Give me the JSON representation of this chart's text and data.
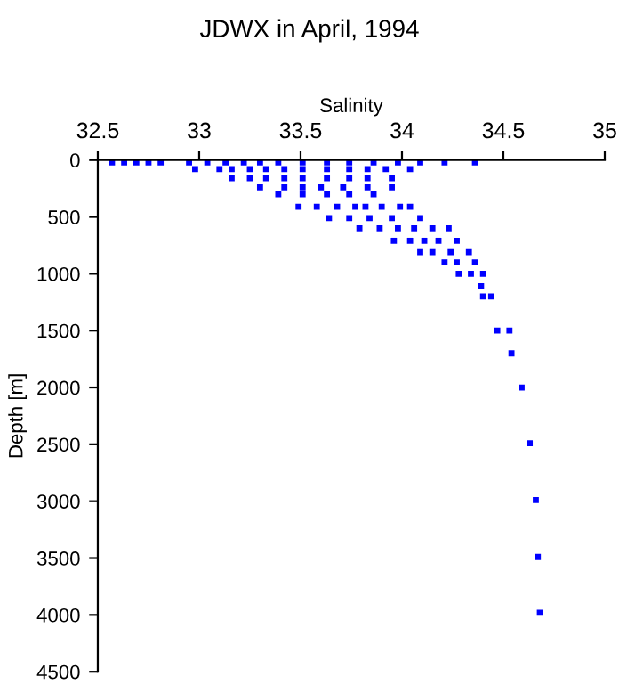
{
  "chart_data": {
    "type": "scatter",
    "title": "JDWX in April, 1994",
    "xlabel": "Salinity",
    "ylabel": "Depth [m]",
    "xlim": [
      32.5,
      35
    ],
    "xticks": [
      32.5,
      33,
      33.5,
      34,
      34.5,
      35
    ],
    "ylim": [
      4500,
      0
    ],
    "yticks": [
      0,
      500,
      1000,
      1500,
      2000,
      2500,
      3000,
      3500,
      4000,
      4500
    ],
    "marker": "square",
    "grid": false,
    "legend": false,
    "series": [
      {
        "color": "#0000ff",
        "x": [
          32.57,
          32.63,
          32.69,
          32.75,
          32.81,
          32.95,
          33.04,
          33.13,
          33.22,
          33.3,
          33.39,
          33.51,
          33.63,
          33.74,
          33.86,
          33.98,
          34.09,
          34.21,
          34.36,
          32.98,
          33.1,
          33.16,
          33.25,
          33.33,
          33.42,
          33.51,
          33.63,
          33.74,
          33.83,
          33.92,
          34.04,
          33.16,
          33.25,
          33.33,
          33.42,
          33.51,
          33.63,
          33.74,
          33.83,
          33.95,
          33.3,
          33.42,
          33.51,
          33.6,
          33.71,
          33.83,
          33.95,
          33.39,
          33.51,
          33.63,
          33.74,
          33.86,
          33.49,
          33.58,
          33.68,
          33.77,
          33.82,
          33.9,
          33.99,
          34.04,
          33.64,
          33.74,
          33.84,
          33.95,
          34.09,
          33.79,
          33.89,
          33.98,
          34.06,
          34.15,
          34.23,
          33.96,
          34.04,
          34.11,
          34.18,
          34.27,
          34.09,
          34.15,
          34.24,
          34.33,
          34.21,
          34.27,
          34.36,
          34.28,
          34.34,
          34.4,
          34.39,
          34.4,
          34.44,
          34.47,
          34.53,
          34.54,
          34.59,
          34.63,
          34.66,
          34.67,
          34.68
        ],
        "values": [
          20,
          20,
          20,
          20,
          20,
          20,
          20,
          20,
          20,
          20,
          20,
          20,
          20,
          20,
          20,
          20,
          20,
          20,
          20,
          80,
          80,
          80,
          80,
          80,
          80,
          80,
          80,
          80,
          80,
          80,
          80,
          160,
          160,
          160,
          160,
          160,
          160,
          160,
          160,
          160,
          240,
          240,
          240,
          240,
          240,
          240,
          240,
          300,
          300,
          300,
          300,
          300,
          410,
          410,
          410,
          410,
          410,
          410,
          410,
          410,
          510,
          510,
          510,
          510,
          510,
          600,
          600,
          600,
          600,
          600,
          600,
          710,
          710,
          710,
          710,
          710,
          810,
          810,
          810,
          810,
          900,
          900,
          900,
          1000,
          1000,
          1000,
          1110,
          1200,
          1200,
          1500,
          1500,
          1700,
          2000,
          2490,
          2990,
          3490,
          3980
        ]
      }
    ]
  }
}
